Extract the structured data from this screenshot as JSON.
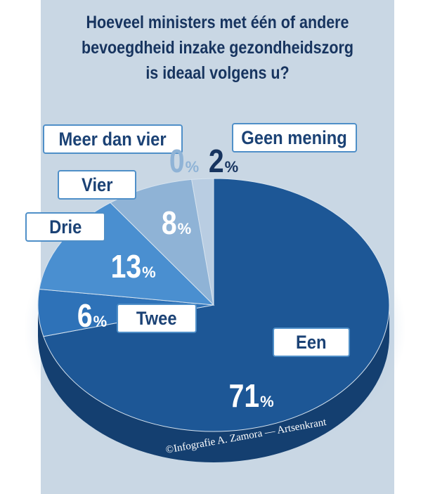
{
  "chart_data": {
    "type": "pie",
    "title": "Hoeveel ministers met één of andere bevoegdheid inzake gezondheidszorg is ideaal volgens u?",
    "title_lines": [
      "Hoeveel ministers met één of andere",
      "bevoegdheid inzake gezondheidszorg",
      "is ideaal volgens u?"
    ],
    "unit": "%",
    "categories": [
      "Een",
      "Twee",
      "Drie",
      "Vier",
      "Meer dan vier",
      "Geen mening"
    ],
    "values": [
      71,
      6,
      13,
      8,
      0,
      2
    ],
    "colors": [
      "#1d5796",
      "#2e72b8",
      "#4a8fd0",
      "#8fb3d6",
      "#9cb9d6",
      "#b9cde2"
    ]
  },
  "credit": "©Infografie A. Zamora — Artsenkrant"
}
